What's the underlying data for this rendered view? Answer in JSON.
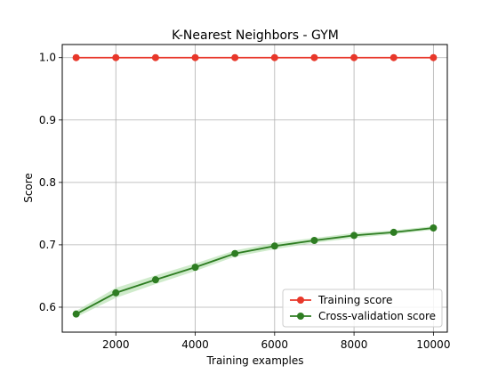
{
  "chart_data": {
    "type": "line",
    "title": "K-Nearest Neighbors - GYM",
    "xlabel": "Training examples",
    "ylabel": "Score",
    "xlim": [
      650,
      10350
    ],
    "ylim": [
      0.56,
      1.021
    ],
    "x": [
      1000,
      2000,
      3000,
      4000,
      5000,
      6000,
      7000,
      8000,
      9000,
      10000
    ],
    "xticks": [
      2000,
      4000,
      6000,
      8000,
      10000
    ],
    "xtick_labels": [
      "2000",
      "4000",
      "6000",
      "8000",
      "10000"
    ],
    "yticks": [
      0.6,
      0.7,
      0.8,
      0.9,
      1.0
    ],
    "ytick_labels": [
      "0.6",
      "0.7",
      "0.8",
      "0.9",
      "1.0"
    ],
    "grid": true,
    "legend": "lower-right",
    "series": [
      {
        "name": "Training score",
        "color": "#e8372a",
        "values": [
          1.0,
          1.0,
          1.0,
          1.0,
          1.0,
          1.0,
          1.0,
          1.0,
          1.0,
          1.0
        ],
        "band_low": [
          1.0,
          1.0,
          1.0,
          1.0,
          1.0,
          1.0,
          1.0,
          1.0,
          1.0,
          1.0
        ],
        "band_high": [
          1.0,
          1.0,
          1.0,
          1.0,
          1.0,
          1.0,
          1.0,
          1.0,
          1.0,
          1.0
        ]
      },
      {
        "name": "Cross-validation score",
        "color": "#2e7d22",
        "band_color": "#a8dba0",
        "values": [
          0.589,
          0.623,
          0.644,
          0.664,
          0.686,
          0.698,
          0.707,
          0.715,
          0.72,
          0.727
        ],
        "band_low": [
          0.584,
          0.615,
          0.637,
          0.658,
          0.681,
          0.693,
          0.703,
          0.711,
          0.717,
          0.724
        ],
        "band_high": [
          0.594,
          0.631,
          0.651,
          0.67,
          0.691,
          0.703,
          0.711,
          0.719,
          0.723,
          0.73
        ]
      }
    ]
  }
}
